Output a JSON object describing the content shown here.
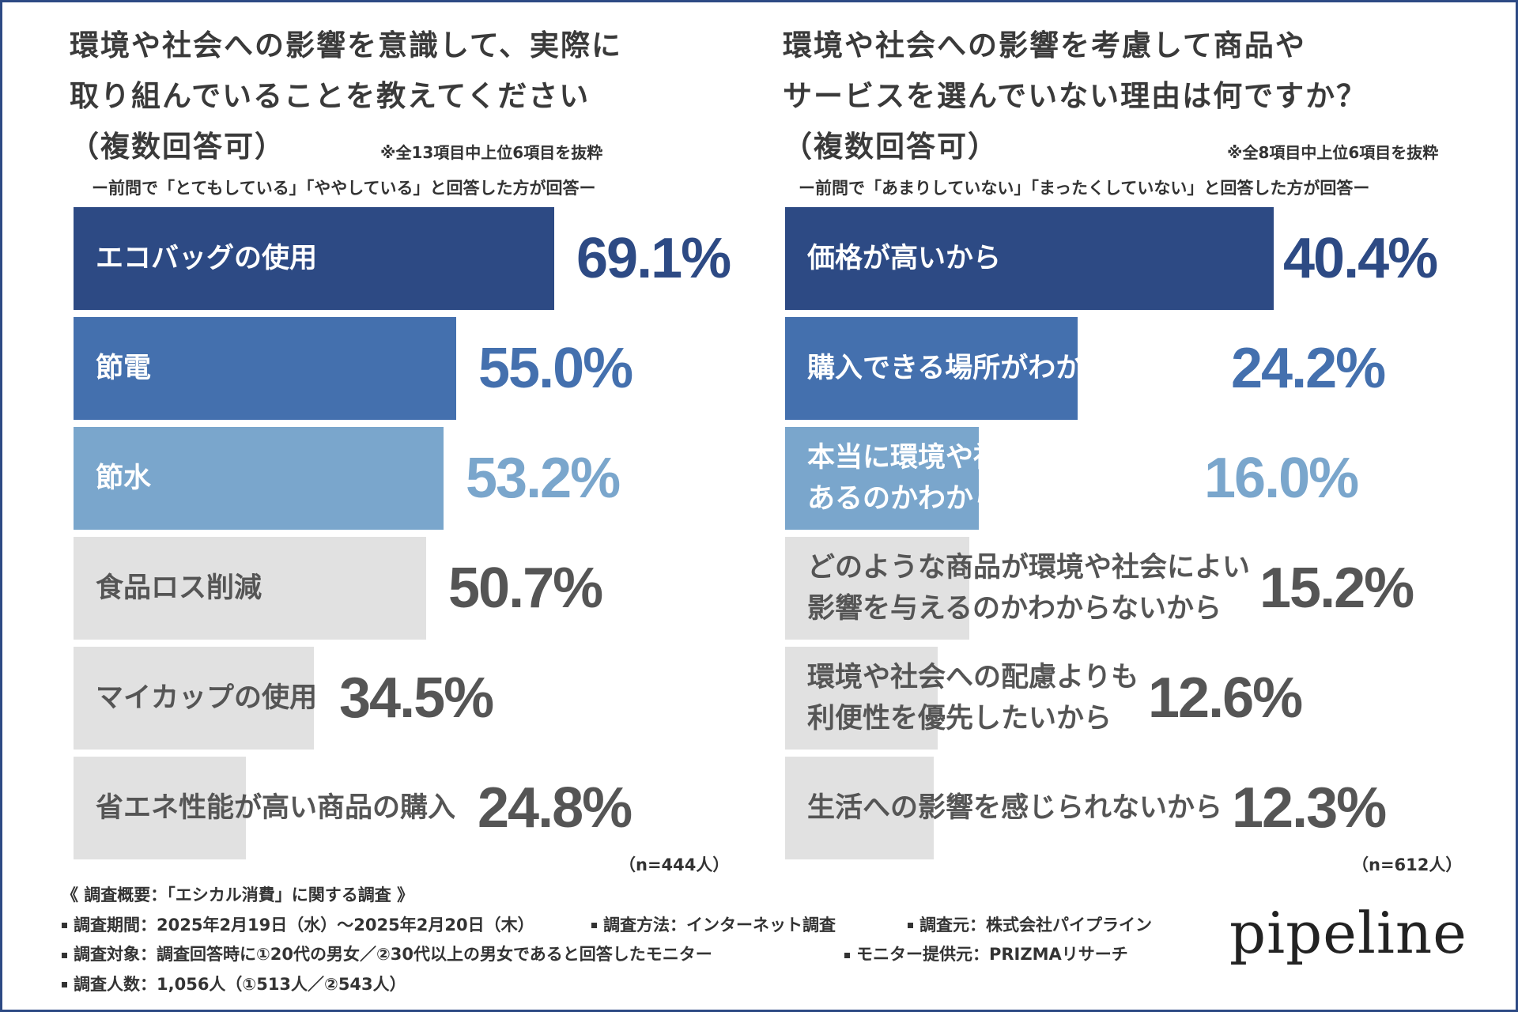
{
  "left_panel": {
    "title_lines": [
      "環境や社会への影響を意識して、実際に",
      "取り組んでいることを教えてください",
      "（複数回答可）"
    ],
    "excerpt_note": "※全13項目中上位6項目を抜粋",
    "subtitle": "ー前問で「とてもしている」「ややしている」と回答した方が回答ー",
    "n_note": "（n=444人）"
  },
  "right_panel": {
    "title_lines": [
      "環境や社会への影響を考慮して商品や",
      "サービスを選んでいない理由は何ですか？",
      "（複数回答可）"
    ],
    "excerpt_note": "※全8項目中上位6項目を抜粋",
    "subtitle": "ー前問で「あまりしていない」「まったくしていない」と回答した方が回答ー",
    "n_note": "（n=612人）"
  },
  "chart_data": [
    {
      "type": "bar",
      "orientation": "horizontal",
      "title": "環境や社会への影響を意識して、実際に取り組んでいることを教えてください（複数回答可）",
      "categories": [
        "エコバッグの使用",
        "節電",
        "節水",
        "食品ロス削減",
        "マイカップの使用",
        "省エネ性能が高い商品の購入"
      ],
      "values": [
        69.1,
        55.0,
        53.2,
        50.7,
        34.5,
        24.8
      ],
      "value_labels": [
        "69.1%",
        "55.0%",
        "53.2%",
        "50.7%",
        "34.5%",
        "24.8%"
      ],
      "unit": "%",
      "xlim": [
        0,
        100
      ],
      "bar_colors": [
        "#2d4a84",
        "#4470ae",
        "#7aa6cc",
        "#e1e1e1",
        "#e1e1e1",
        "#e1e1e1"
      ],
      "value_colors": [
        "#2d4a84",
        "#4470ae",
        "#7aa6cc",
        "#555555",
        "#555555",
        "#555555"
      ],
      "label_colors": [
        "#ffffff",
        "#ffffff",
        "#ffffff",
        "#555555",
        "#555555",
        "#555555"
      ]
    },
    {
      "type": "bar",
      "orientation": "horizontal",
      "title": "環境や社会への影響を考慮して商品やサービスを選んでいない理由は何ですか？（複数回答可）",
      "categories": [
        "価格が高いから",
        "購入できる場所がわからないから",
        "本当に環境や社会によい影響があるのかわからないから",
        "どのような商品が環境や社会によい影響を与えるのかわからないから",
        "環境や社会への配慮よりも利便性を優先したいから",
        "生活への影響を感じられないから"
      ],
      "category_lines": [
        [
          "価格が高いから"
        ],
        [
          "購入できる場所がわからないから"
        ],
        [
          "本当に環境や社会によい影響が",
          "あるのかわからないから"
        ],
        [
          "どのような商品が環境や社会によい",
          "影響を与えるのかわからないから"
        ],
        [
          "環境や社会への配慮よりも",
          "利便性を優先したいから"
        ],
        [
          "生活への影響を感じられないから"
        ]
      ],
      "values": [
        40.4,
        24.2,
        16.0,
        15.2,
        12.6,
        12.3
      ],
      "value_labels": [
        "40.4%",
        "24.2%",
        "16.0%",
        "15.2%",
        "12.6%",
        "12.3%"
      ],
      "unit": "%",
      "xlim": [
        0,
        53.6
      ],
      "bar_colors": [
        "#2d4a84",
        "#4470ae",
        "#7aa6cc",
        "#e1e1e1",
        "#e1e1e1",
        "#e1e1e1"
      ],
      "value_colors": [
        "#2d4a84",
        "#4470ae",
        "#7aa6cc",
        "#555555",
        "#555555",
        "#555555"
      ],
      "label_colors": [
        "#ffffff",
        "#ffffff",
        "#ffffff",
        "#555555",
        "#555555",
        "#555555"
      ]
    }
  ],
  "footer": {
    "heading": "《 調査概要：「エシカル消費」に関する調査 》",
    "period": "調査期間：2025年2月19日（水）～2025年2月20日（木）",
    "method": "調査方法：インターネット調査",
    "source": "調査元：株式会社パイプライン",
    "target": "調査対象：調査回答時に①20代の男女／②30代以上の男女であると回答したモニター",
    "provider": "モニター提供元：PRIZMAリサーチ",
    "count": "調査人数：1,056人（①513人／②543人）"
  },
  "logo": "pipeline"
}
